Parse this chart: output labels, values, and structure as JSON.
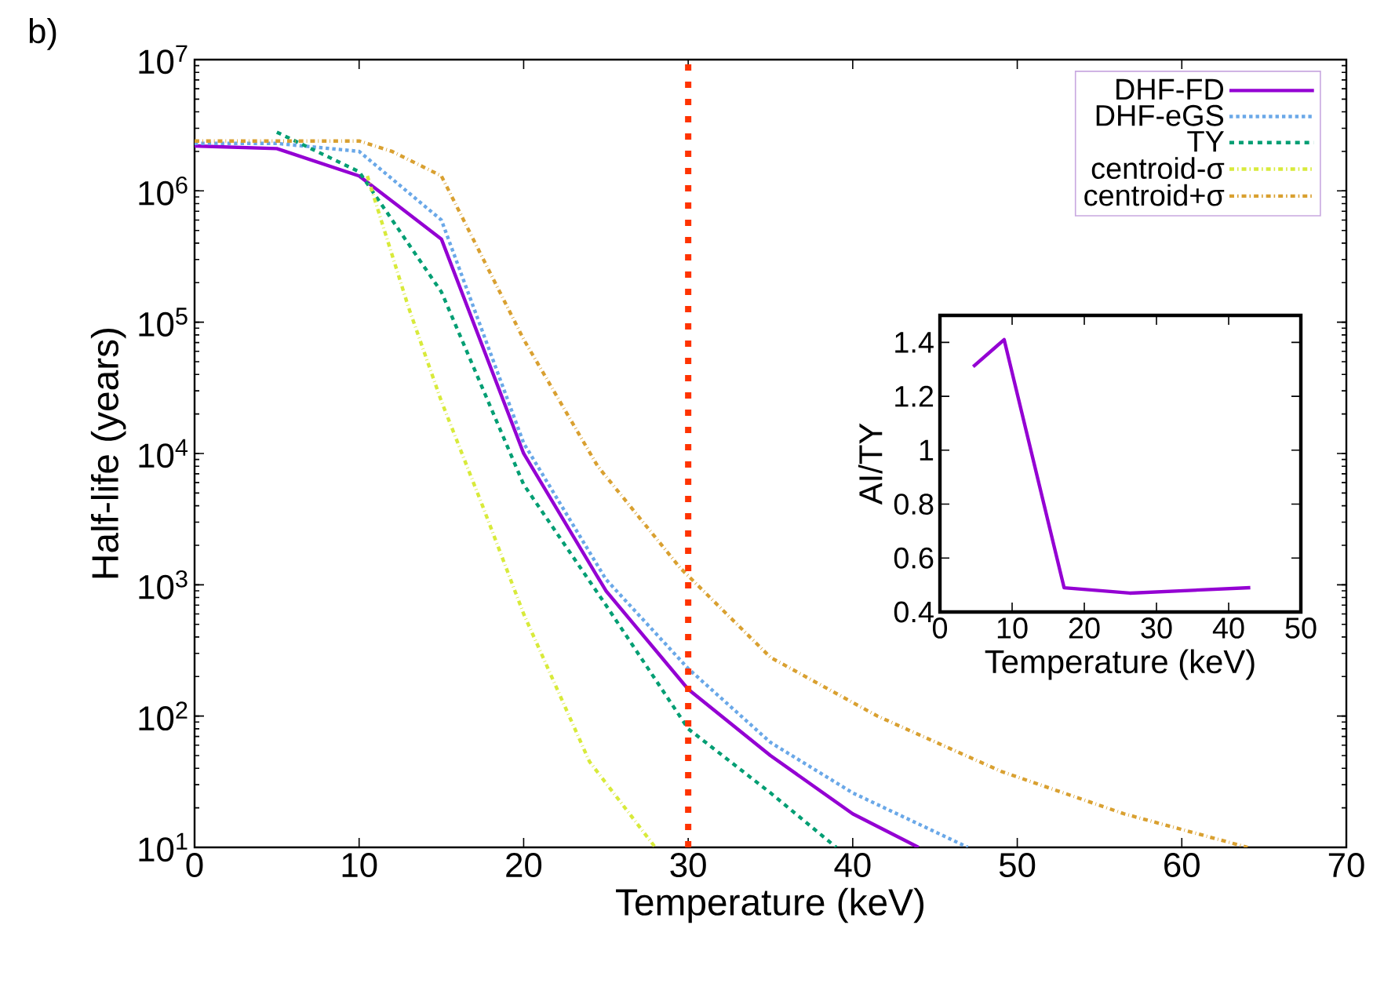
{
  "chart_data": [
    {
      "type": "line",
      "annotations": [
        "b)"
      ],
      "xlabel": "Temperature (keV)",
      "ylabel": "Half-life (years)",
      "log": "y",
      "legend": "top right",
      "xlim": [
        0,
        70
      ],
      "xticks": [
        0,
        10,
        20,
        30,
        40,
        50,
        60,
        70
      ],
      "ylim": [
        10,
        10000000
      ],
      "yticks": [
        {
          "value": 10,
          "label": "10$^{1}$"
        },
        {
          "value": 100,
          "label": "10$^{2}$"
        },
        {
          "value": 1000,
          "label": "10$^{3}$"
        },
        {
          "value": 10000,
          "label": "10$^{4}$"
        },
        {
          "value": 100000,
          "label": "10$^{5}$"
        },
        {
          "value": 1000000,
          "label": "10$^{6}$"
        },
        {
          "value": 10000000,
          "label": "10$^{7}$"
        }
      ],
      "ref_lines": [
        {
          "axis": "x",
          "value": 30,
          "color": "#ff3300",
          "line_style": "dotted"
        }
      ],
      "series": [
        {
          "name": "DHF-FD",
          "color": "#9400d3",
          "line_style": "solid",
          "x": [
            0,
            5,
            10,
            15,
            20,
            25,
            30,
            35,
            40,
            44
          ],
          "values": [
            2200000,
            2100000,
            1300000,
            430000,
            10000,
            900,
            160,
            50,
            18,
            10
          ]
        },
        {
          "name": "DHF-eGS",
          "color": "#6aa8e8",
          "line_style": "dotted",
          "x": [
            0,
            5,
            10,
            15,
            20,
            25,
            30,
            35,
            40,
            47
          ],
          "values": [
            2300000,
            2300000,
            2000000,
            600000,
            12000,
            1100,
            230,
            63,
            26,
            10
          ]
        },
        {
          "name": "TY",
          "color": "#009e73",
          "line_style": "dashed",
          "x": [
            5,
            10,
            15,
            20,
            25,
            30,
            35,
            39
          ],
          "values": [
            2800000,
            1400000,
            170000,
            5800,
            700,
            80,
            26,
            10
          ]
        },
        {
          "name": "centroid-σ",
          "color": "#d8ea3a",
          "line_style": "dash-dot",
          "x": [
            10.5,
            13,
            15,
            17.5,
            20,
            24,
            28
          ],
          "values": [
            1300000,
            130000,
            25000,
            4000,
            600,
            45,
            10
          ]
        },
        {
          "name": "centroid+σ",
          "color": "#d9a030",
          "line_style": "dash-dot",
          "x": [
            0,
            10,
            12,
            15,
            20,
            24.5,
            29.5,
            35,
            41.5,
            49,
            56.5,
            64
          ],
          "values": [
            2400000,
            2400000,
            2000000,
            1300000,
            74000,
            8000,
            1350,
            280,
            100,
            38,
            18,
            10
          ]
        }
      ]
    },
    {
      "type": "line",
      "xlabel": "Temperature (keV)",
      "ylabel": "AI/TY",
      "xlim": [
        0,
        50
      ],
      "xticks": [
        0,
        10,
        20,
        30,
        40,
        50
      ],
      "ylim": [
        0.4,
        1.5
      ],
      "yticks": [
        0.4,
        0.6,
        0.8,
        1,
        1.2,
        1.4
      ],
      "series": [
        {
          "color": "#9400d3",
          "x": [
            4.6,
            8.9,
            17.2,
            26.3,
            43
          ],
          "values": [
            1.31,
            1.41,
            0.49,
            0.47,
            0.49
          ]
        }
      ]
    }
  ]
}
